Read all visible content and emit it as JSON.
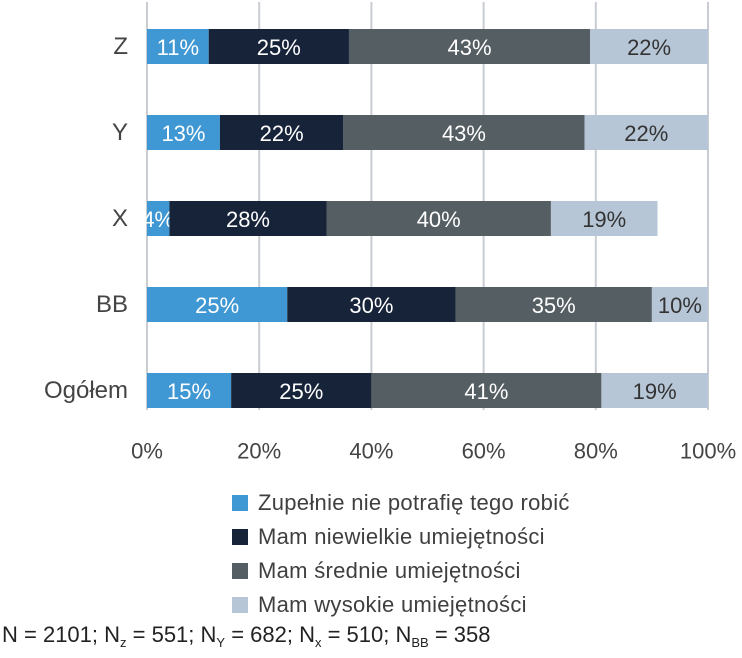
{
  "chart_data": {
    "type": "bar",
    "orientation": "horizontal",
    "stacked": true,
    "categories": [
      "Z",
      "Y",
      "X",
      "BB",
      "Ogółem"
    ],
    "series": [
      {
        "name": "Zupełnie nie potrafię tego robić",
        "values": [
          11,
          13,
          4,
          25,
          15
        ],
        "labels": [
          "11%",
          "13%",
          "4%",
          "25%",
          "15%"
        ],
        "color": "#3f97d3",
        "label_color": "#ffffff"
      },
      {
        "name": "Mam niewielkie umiejętności",
        "values": [
          25,
          22,
          28,
          30,
          25
        ],
        "labels": [
          "25%",
          "22%",
          "28%",
          "30%",
          "25%"
        ],
        "color": "#172339",
        "label_color": "#ffffff"
      },
      {
        "name": "Mam średnie umiejętności",
        "values": [
          43,
          43,
          40,
          35,
          41
        ],
        "labels": [
          "43%",
          "43%",
          "40%",
          "35%",
          "41%"
        ],
        "color": "#555e62",
        "label_color": "#ffffff"
      },
      {
        "name": "Mam wysokie umiejętności",
        "values": [
          22,
          22,
          19,
          10,
          19
        ],
        "labels": [
          "22%",
          "22%",
          "19%",
          "10%",
          "19%"
        ],
        "color": "#b7c6d7",
        "label_color": "#333333"
      }
    ],
    "xlim": [
      0,
      100
    ],
    "xticks": [
      "0%",
      "20%",
      "40%",
      "60%",
      "80%",
      "100%"
    ],
    "grid": true,
    "legend_position": "bottom"
  },
  "footnote": {
    "n_total": "N = 2101; N",
    "z_sub": "z",
    "z_val": " = 551; N",
    "y_sub": "Y",
    "y_val": " = 682; N",
    "x_sub": "x",
    "x_val": " = 510; N",
    "bb_sub": "BB",
    "bb_val": " = 358"
  }
}
